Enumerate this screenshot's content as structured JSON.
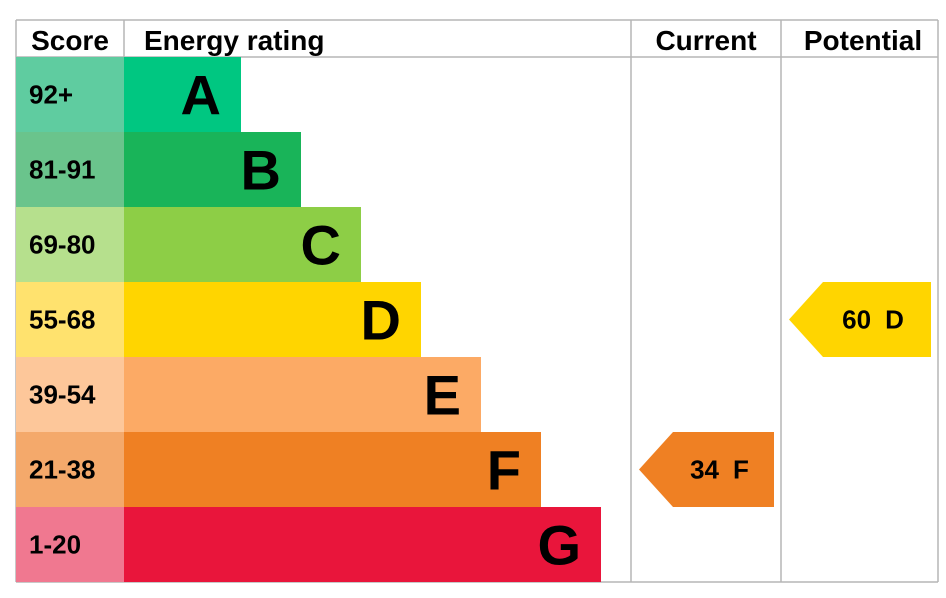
{
  "headers": {
    "score": "Score",
    "energy_rating": "Energy rating",
    "current": "Current",
    "potential": "Potential"
  },
  "chart_data": {
    "type": "bar",
    "orientation": "horizontal",
    "bands": [
      {
        "letter": "A",
        "range": "92+",
        "bar_color": "#00c781",
        "score_color": "#5fcca0"
      },
      {
        "letter": "B",
        "range": "81-91",
        "bar_color": "#19b459",
        "score_color": "#6ac48c"
      },
      {
        "letter": "C",
        "range": "69-80",
        "bar_color": "#8dce46",
        "score_color": "#b6e08d"
      },
      {
        "letter": "D",
        "range": "55-68",
        "bar_color": "#ffd500",
        "score_color": "#ffe26e"
      },
      {
        "letter": "E",
        "range": "39-54",
        "bar_color": "#fcaa65",
        "score_color": "#fdc79a"
      },
      {
        "letter": "F",
        "range": "21-38",
        "bar_color": "#ef8023",
        "score_color": "#f4a96b"
      },
      {
        "letter": "G",
        "range": "1-20",
        "bar_color": "#e9153b",
        "score_color": "#f07890"
      }
    ],
    "current": {
      "value": 34,
      "band": "F",
      "label": "34",
      "color": "#ef8023"
    },
    "potential": {
      "value": 60,
      "band": "D",
      "label": "60",
      "color": "#ffd500"
    }
  }
}
